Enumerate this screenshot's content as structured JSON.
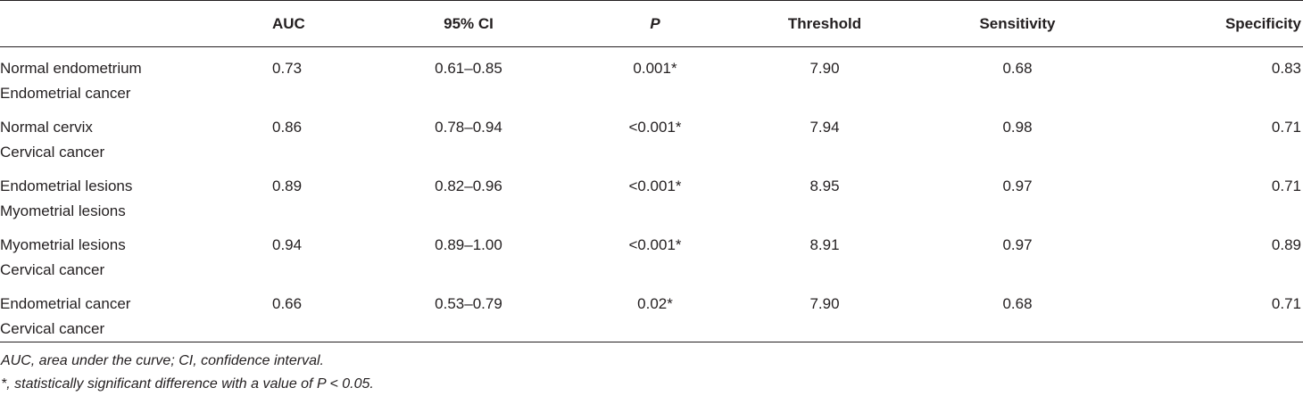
{
  "table": {
    "headers": [
      "",
      "AUC",
      "95% CI",
      "P",
      "Threshold",
      "Sensitivity",
      "Specificity"
    ],
    "rows": [
      {
        "group1": "Normal endometrium",
        "group2": "Endometrial cancer",
        "auc": "0.73",
        "ci": "0.61–0.85",
        "p": "0.001*",
        "threshold": "7.90",
        "sensitivity": "0.68",
        "specificity": "0.83"
      },
      {
        "group1": "Normal cervix",
        "group2": "Cervical cancer",
        "auc": "0.86",
        "ci": "0.78–0.94",
        "p": "<0.001*",
        "threshold": "7.94",
        "sensitivity": "0.98",
        "specificity": "0.71"
      },
      {
        "group1": "Endometrial lesions",
        "group2": "Myometrial lesions",
        "auc": "0.89",
        "ci": "0.82–0.96",
        "p": "<0.001*",
        "threshold": "8.95",
        "sensitivity": "0.97",
        "specificity": "0.71"
      },
      {
        "group1": "Myometrial lesions",
        "group2": "Cervical cancer",
        "auc": "0.94",
        "ci": "0.89–1.00",
        "p": "<0.001*",
        "threshold": "8.91",
        "sensitivity": "0.97",
        "specificity": "0.89"
      },
      {
        "group1": "Endometrial cancer",
        "group2": "Cervical cancer",
        "auc": "0.66",
        "ci": "0.53–0.79",
        "p": "0.02*",
        "threshold": "7.90",
        "sensitivity": "0.68",
        "specificity": "0.71"
      }
    ]
  },
  "notes": {
    "abbreviations": "AUC, area under the curve; CI, confidence interval.",
    "significance": "*, statistically significant difference with a value of P < 0.05."
  }
}
